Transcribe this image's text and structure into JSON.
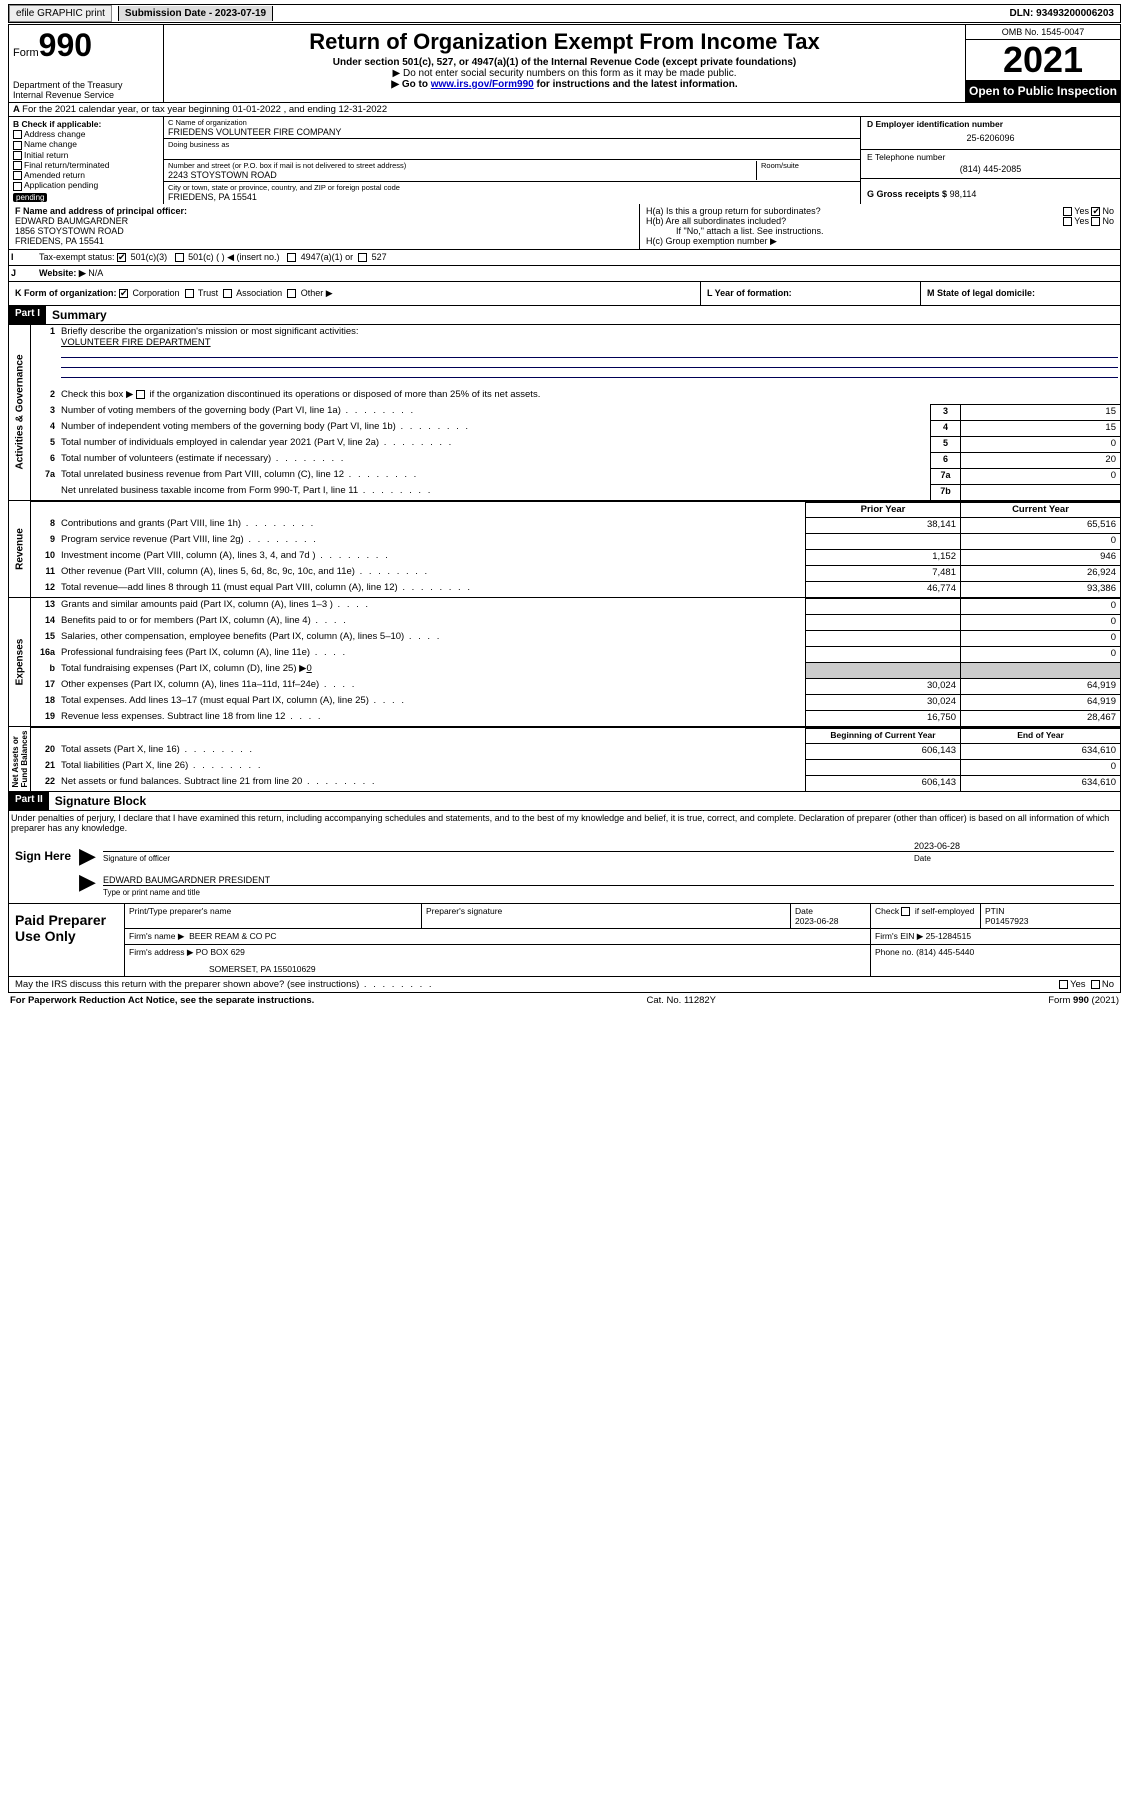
{
  "topbar": {
    "efile": "efile GRAPHIC print",
    "submission_label": "Submission Date - 2023-07-19",
    "dln": "DLN: 93493200006203"
  },
  "header": {
    "form_label": "Form",
    "form_number": "990",
    "dept": "Department of the Treasury\nInternal Revenue Service",
    "title": "Return of Organization Exempt From Income Tax",
    "sub1": "Under section 501(c), 527, or 4947(a)(1) of the Internal Revenue Code (except private foundations)",
    "sub2": "▶ Do not enter social security numbers on this form as it may be made public.",
    "sub3_pre": "▶ Go to ",
    "sub3_link": "www.irs.gov/Form990",
    "sub3_post": " for instructions and the latest information.",
    "omb": "OMB No. 1545-0047",
    "year": "2021",
    "opi": "Open to Public Inspection"
  },
  "A": {
    "text": "For the 2021 calendar year, or tax year beginning 01-01-2022   , and ending 12-31-2022"
  },
  "B": {
    "label": "B Check if applicable:",
    "opts": [
      "Address change",
      "Name change",
      "Initial return",
      "Final return/terminated",
      "Amended return",
      "Application pending"
    ],
    "pending_tag": "pending"
  },
  "C": {
    "name_lbl": "C Name of organization",
    "name": "FRIEDENS VOLUNTEER FIRE COMPANY",
    "dba_lbl": "Doing business as",
    "addr_lbl": "Number and street (or P.O. box if mail is not delivered to street address)",
    "room_lbl": "Room/suite",
    "addr": "2243 STOYSTOWN ROAD",
    "city_lbl": "City or town, state or province, country, and ZIP or foreign postal code",
    "city": "FRIEDENS, PA  15541"
  },
  "D": {
    "lbl": "D Employer identification number",
    "val": "25-6206096"
  },
  "E": {
    "lbl": "E Telephone number",
    "val": "(814) 445-2085"
  },
  "G": {
    "lbl": "G Gross receipts $",
    "val": "98,114"
  },
  "F": {
    "lbl": "F  Name and address of principal officer:",
    "name": "EDWARD BAUMGARDNER",
    "addr1": "1856 STOYSTOWN ROAD",
    "addr2": "FRIEDENS, PA  15541"
  },
  "H": {
    "a": "H(a)  Is this a group return for subordinates?",
    "b": "H(b)  Are all subordinates included?",
    "b_note": "If \"No,\" attach a list. See instructions.",
    "c": "H(c)  Group exemption number ▶",
    "yes": "Yes",
    "no": "No"
  },
  "I": {
    "lbl": "Tax-exempt status:",
    "o1": "501(c)(3)",
    "o2": "501(c) (  ) ◀ (insert no.)",
    "o3": "4947(a)(1) or",
    "o4": "527"
  },
  "J": {
    "lbl": "Website: ▶",
    "val": "N/A"
  },
  "K": {
    "lbl": "K Form of organization:",
    "o1": "Corporation",
    "o2": "Trust",
    "o3": "Association",
    "o4": "Other ▶"
  },
  "L": {
    "lbl": "L Year of formation:"
  },
  "M": {
    "lbl": "M State of legal domicile:"
  },
  "part1": {
    "hdr": "Part I",
    "title": "Summary",
    "l1": "Briefly describe the organization's mission or most significant activities:",
    "mission": "VOLUNTEER FIRE DEPARTMENT",
    "l2": "Check this box ▶        if the organization discontinued its operations or disposed of more than 25% of its net assets.",
    "rows_gov": [
      {
        "n": "3",
        "t": "Number of voting members of the governing body (Part VI, line 1a)",
        "b": "3",
        "v": "15"
      },
      {
        "n": "4",
        "t": "Number of independent voting members of the governing body (Part VI, line 1b)",
        "b": "4",
        "v": "15"
      },
      {
        "n": "5",
        "t": "Total number of individuals employed in calendar year 2021 (Part V, line 2a)",
        "b": "5",
        "v": "0"
      },
      {
        "n": "6",
        "t": "Total number of volunteers (estimate if necessary)",
        "b": "6",
        "v": "20"
      },
      {
        "n": "7a",
        "t": "Total unrelated business revenue from Part VIII, column (C), line 12",
        "b": "7a",
        "v": "0"
      },
      {
        "n": "",
        "t": "Net unrelated business taxable income from Form 990-T, Part I, line 11",
        "b": "7b",
        "v": ""
      }
    ],
    "col_prior": "Prior Year",
    "col_curr": "Current Year",
    "rows_rev": [
      {
        "n": "8",
        "t": "Contributions and grants (Part VIII, line 1h)",
        "p": "38,141",
        "c": "65,516"
      },
      {
        "n": "9",
        "t": "Program service revenue (Part VIII, line 2g)",
        "p": "",
        "c": "0"
      },
      {
        "n": "10",
        "t": "Investment income (Part VIII, column (A), lines 3, 4, and 7d )",
        "p": "1,152",
        "c": "946"
      },
      {
        "n": "11",
        "t": "Other revenue (Part VIII, column (A), lines 5, 6d, 8c, 9c, 10c, and 11e)",
        "p": "7,481",
        "c": "26,924"
      },
      {
        "n": "12",
        "t": "Total revenue—add lines 8 through 11 (must equal Part VIII, column (A), line 12)",
        "p": "46,774",
        "c": "93,386"
      }
    ],
    "rows_exp": [
      {
        "n": "13",
        "t": "Grants and similar amounts paid (Part IX, column (A), lines 1–3 )",
        "p": "",
        "c": "0"
      },
      {
        "n": "14",
        "t": "Benefits paid to or for members (Part IX, column (A), line 4)",
        "p": "",
        "c": "0"
      },
      {
        "n": "15",
        "t": "Salaries, other compensation, employee benefits (Part IX, column (A), lines 5–10)",
        "p": "",
        "c": "0"
      },
      {
        "n": "16a",
        "t": "Professional fundraising fees (Part IX, column (A), line 11e)",
        "p": "",
        "c": "0"
      }
    ],
    "l16b_pre": "Total fundraising expenses (Part IX, column (D), line 25) ▶",
    "l16b_val": "0",
    "rows_exp2": [
      {
        "n": "17",
        "t": "Other expenses (Part IX, column (A), lines 11a–11d, 11f–24e)",
        "p": "30,024",
        "c": "64,919"
      },
      {
        "n": "18",
        "t": "Total expenses. Add lines 13–17 (must equal Part IX, column (A), line 25)",
        "p": "30,024",
        "c": "64,919"
      },
      {
        "n": "19",
        "t": "Revenue less expenses. Subtract line 18 from line 12",
        "p": "16,750",
        "c": "28,467"
      }
    ],
    "col_begin": "Beginning of Current Year",
    "col_end": "End of Year",
    "rows_na": [
      {
        "n": "20",
        "t": "Total assets (Part X, line 16)",
        "p": "606,143",
        "c": "634,610"
      },
      {
        "n": "21",
        "t": "Total liabilities (Part X, line 26)",
        "p": "",
        "c": "0"
      },
      {
        "n": "22",
        "t": "Net assets or fund balances. Subtract line 21 from line 20",
        "p": "606,143",
        "c": "634,610"
      }
    ],
    "vlabels": {
      "gov": "Activities & Governance",
      "rev": "Revenue",
      "exp": "Expenses",
      "na": "Net Assets or\nFund Balances"
    }
  },
  "part2": {
    "hdr": "Part II",
    "title": "Signature Block",
    "decl": "Under penalties of perjury, I declare that I have examined this return, including accompanying schedules and statements, and to the best of my knowledge and belief, it is true, correct, and complete. Declaration of preparer (other than officer) is based on all information of which preparer has any knowledge.",
    "sign_here": "Sign Here",
    "sig_officer_lbl": "Signature of officer",
    "sig_date": "2023-06-28",
    "date_lbl": "Date",
    "officer_name": "EDWARD BAUMGARDNER  PRESIDENT",
    "officer_type_lbl": "Type or print name and title"
  },
  "prep": {
    "lbl": "Paid Preparer Use Only",
    "h1": "Print/Type preparer's name",
    "h2": "Preparer's signature",
    "h3": "Date",
    "date": "2023-06-28",
    "h4_pre": "Check",
    "h4_post": "if self-employed",
    "h5": "PTIN",
    "ptin": "P01457923",
    "firm_name_lbl": "Firm's name    ▶",
    "firm_name": "BEER REAM & CO PC",
    "firm_ein_lbl": "Firm's EIN ▶",
    "firm_ein": "25-1284515",
    "firm_addr_lbl": "Firm's address ▶",
    "firm_addr1": "PO BOX 629",
    "firm_addr2": "SOMERSET, PA  155010629",
    "phone_lbl": "Phone no.",
    "phone": "(814) 445-5440"
  },
  "may": {
    "txt": "May the IRS discuss this return with the preparer shown above? (see instructions)",
    "yes": "Yes",
    "no": "No"
  },
  "footer": {
    "left": "For Paperwork Reduction Act Notice, see the separate instructions.",
    "mid": "Cat. No. 11282Y",
    "right": "Form 990 (2021)"
  }
}
